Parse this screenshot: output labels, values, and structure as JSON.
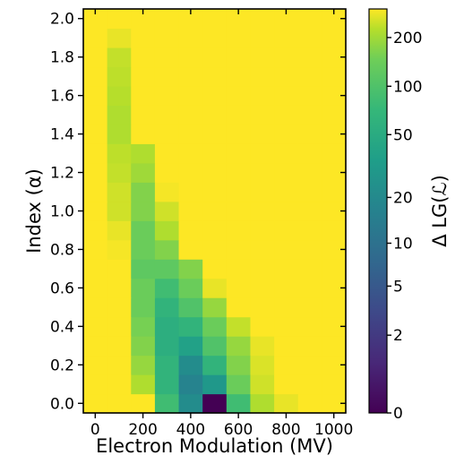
{
  "chart_data": {
    "type": "heatmap",
    "xlabel": "Electron Modulation (MV)",
    "ylabel": "Index (α)",
    "colorbar_label": "Δ LG(ℒ)",
    "colormap": "viridis",
    "colorbar_scale": "log",
    "colorbar_ticks": [
      "0",
      "2",
      "5",
      "10",
      "20",
      "50",
      "100",
      "200"
    ],
    "xlim": [
      -50,
      1050
    ],
    "ylim": [
      -0.05,
      2.05
    ],
    "xticks": [
      0,
      200,
      400,
      600,
      800,
      1000
    ],
    "xtick_labels": [
      "0",
      "200",
      "400",
      "600",
      "800",
      "1000"
    ],
    "yticks": [
      0.0,
      0.2,
      0.4,
      0.6,
      0.8,
      1.0,
      1.2,
      1.4,
      1.6,
      1.8,
      2.0
    ],
    "ytick_labels": [
      "0.0",
      "0.2",
      "0.4",
      "0.6",
      "0.8",
      "1.0",
      "1.2",
      "1.4",
      "1.6",
      "1.8",
      "2.0"
    ],
    "x_centers": [
      0,
      100,
      200,
      300,
      400,
      500,
      600,
      700,
      800,
      900,
      1000
    ],
    "y_centers": [
      0.0,
      0.1,
      0.2,
      0.3,
      0.4,
      0.5,
      0.6,
      0.7,
      0.8,
      0.9,
      1.0,
      1.1,
      1.2,
      1.3,
      1.4,
      1.5,
      1.6,
      1.7,
      1.8,
      1.9,
      2.0
    ],
    "z": [
      [
        300,
        300,
        300,
        50,
        15,
        0,
        50,
        150,
        250,
        300,
        300
      ],
      [
        300,
        300,
        150,
        40,
        12,
        20,
        80,
        200,
        300,
        300,
        300
      ],
      [
        300,
        300,
        120,
        40,
        15,
        40,
        100,
        220,
        300,
        300,
        300
      ],
      [
        300,
        300,
        100,
        35,
        25,
        60,
        120,
        250,
        300,
        300,
        300
      ],
      [
        300,
        300,
        90,
        35,
        40,
        80,
        180,
        300,
        300,
        300,
        300
      ],
      [
        300,
        300,
        80,
        40,
        60,
        120,
        300,
        300,
        300,
        300,
        300
      ],
      [
        300,
        300,
        80,
        50,
        80,
        250,
        300,
        300,
        300,
        300,
        300
      ],
      [
        300,
        300,
        70,
        70,
        100,
        300,
        300,
        300,
        300,
        300,
        300
      ],
      [
        300,
        280,
        80,
        100,
        300,
        300,
        300,
        300,
        300,
        300,
        300
      ],
      [
        300,
        250,
        80,
        150,
        300,
        300,
        300,
        300,
        300,
        300,
        300
      ],
      [
        300,
        200,
        100,
        200,
        300,
        300,
        300,
        300,
        300,
        300,
        300
      ],
      [
        300,
        200,
        100,
        280,
        300,
        300,
        300,
        300,
        300,
        300,
        300
      ],
      [
        300,
        180,
        130,
        300,
        300,
        300,
        300,
        300,
        300,
        300,
        300
      ],
      [
        300,
        170,
        150,
        300,
        300,
        300,
        300,
        300,
        300,
        300,
        300
      ],
      [
        300,
        150,
        300,
        300,
        300,
        300,
        300,
        300,
        300,
        300,
        300
      ],
      [
        300,
        150,
        300,
        300,
        300,
        300,
        300,
        300,
        300,
        300,
        300
      ],
      [
        300,
        160,
        300,
        300,
        300,
        300,
        300,
        300,
        300,
        300,
        300
      ],
      [
        300,
        170,
        300,
        300,
        300,
        300,
        300,
        300,
        300,
        300,
        300
      ],
      [
        300,
        180,
        300,
        300,
        300,
        300,
        300,
        300,
        300,
        300,
        300
      ],
      [
        300,
        250,
        300,
        300,
        300,
        300,
        300,
        300,
        300,
        300,
        300
      ],
      [
        300,
        300,
        300,
        300,
        300,
        300,
        300,
        300,
        300,
        300,
        300
      ]
    ]
  }
}
